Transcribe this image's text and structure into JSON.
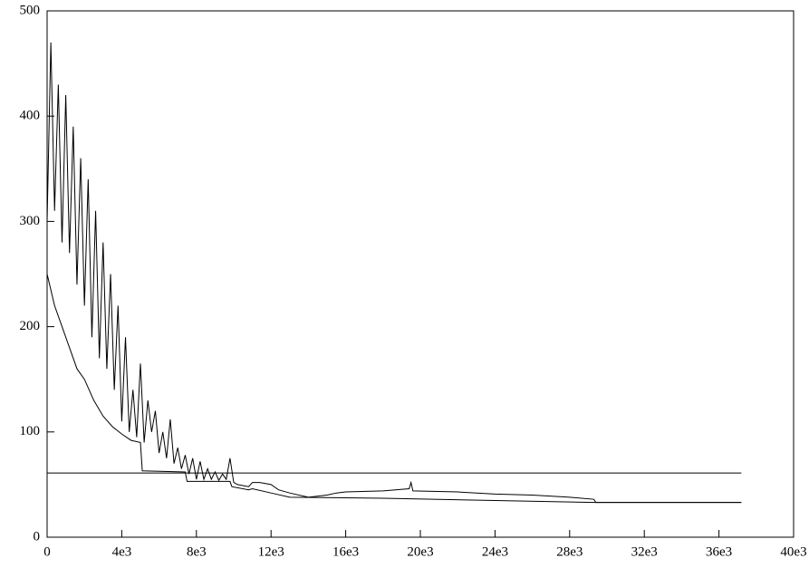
{
  "chart_data": {
    "type": "line",
    "xlim": [
      0,
      40000
    ],
    "ylim": [
      0,
      500
    ],
    "xticks": [
      0,
      {
        "value": 4000,
        "label": "4e3"
      },
      {
        "value": 8000,
        "label": "8e3"
      },
      {
        "value": 12000,
        "label": "12e3"
      },
      {
        "value": 16000,
        "label": "16e3"
      },
      {
        "value": 20000,
        "label": "20e3"
      },
      {
        "value": 24000,
        "label": "24e3"
      },
      {
        "value": 28000,
        "label": "28e3"
      },
      {
        "value": 32000,
        "label": "32e3"
      },
      {
        "value": 36000,
        "label": "36e3"
      },
      {
        "value": 40000,
        "label": "40e3"
      }
    ],
    "yticks": [
      0,
      100,
      200,
      300,
      400,
      500
    ],
    "grid": false,
    "series": [
      {
        "color": "#000000",
        "x": [
          0,
          200,
          400,
          600,
          800,
          1000,
          1200,
          1400,
          1600,
          1800,
          2000,
          2200,
          2400,
          2600,
          2800,
          3000,
          3200,
          3400,
          3600,
          3800,
          4000,
          4200,
          4400,
          4600,
          4800,
          5000,
          5200,
          5400,
          5600,
          5800,
          6000,
          6200,
          6400,
          6600,
          6800,
          7000,
          7200,
          7400,
          7600,
          7800,
          8000,
          8200,
          8400,
          8600,
          8800,
          9000,
          9200,
          9400,
          9600,
          9800,
          10000,
          10200,
          10800,
          11000,
          11400,
          12000,
          12400,
          13000,
          14000,
          15000,
          15500,
          16000,
          18000,
          19400,
          19500,
          19600,
          22000,
          24000,
          26000,
          28000,
          29300,
          29400,
          32000,
          37200
        ],
        "values": [
          300,
          470,
          310,
          430,
          280,
          420,
          270,
          390,
          240,
          360,
          220,
          340,
          190,
          310,
          170,
          280,
          160,
          250,
          140,
          220,
          110,
          190,
          100,
          140,
          95,
          165,
          90,
          130,
          100,
          120,
          80,
          100,
          75,
          112,
          70,
          85,
          65,
          78,
          60,
          75,
          55,
          72,
          55,
          65,
          55,
          62,
          54,
          60,
          55,
          75,
          52,
          50,
          48,
          52,
          52,
          50,
          45,
          42,
          38,
          40,
          42,
          43,
          44,
          46,
          52,
          44,
          43,
          41,
          40,
          38,
          36,
          33,
          33,
          33
        ]
      },
      {
        "color": "#000000",
        "x": [
          0,
          400,
          800,
          1200,
          1600,
          2000,
          2500,
          3000,
          3500,
          4000,
          4500,
          5000,
          5100,
          7400,
          7500,
          9800,
          9900,
          10800,
          11000,
          12000,
          13000,
          18000,
          29300,
          37200
        ],
        "values": [
          250,
          220,
          200,
          180,
          160,
          150,
          130,
          115,
          105,
          98,
          92,
          90,
          63,
          62,
          53,
          53,
          48,
          45,
          46,
          42,
          38,
          37,
          33,
          33
        ]
      },
      {
        "color": "#000000",
        "x": [
          0,
          37200
        ],
        "values": [
          61,
          61
        ]
      }
    ]
  }
}
